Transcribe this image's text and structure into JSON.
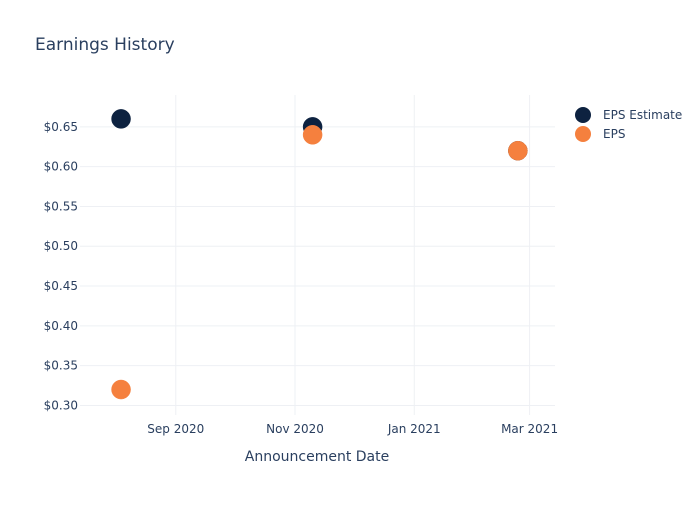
{
  "chart_data": {
    "type": "scatter",
    "title": "Earnings History",
    "xlabel": "Announcement Date",
    "ylabel": "",
    "x_tick_labels": [
      "Sep 2020",
      "Nov 2020",
      "Jan 2021",
      "Mar 2021"
    ],
    "x_ticks": [
      "2020-09-01",
      "2020-11-01",
      "2021-01-01",
      "2021-03-01"
    ],
    "xlim": [
      "2020-07-14",
      "2021-03-14"
    ],
    "y_tick_labels": [
      "$0.30",
      "$0.35",
      "$0.40",
      "$0.45",
      "$0.50",
      "$0.55",
      "$0.60",
      "$0.65"
    ],
    "y_ticks": [
      0.3,
      0.35,
      0.4,
      0.45,
      0.5,
      0.55,
      0.6,
      0.65
    ],
    "ylim": [
      0.288,
      0.69
    ],
    "grid": true,
    "legend_position": "top-right",
    "x": [
      "2020-08-04",
      "2020-11-10",
      "2021-02-23"
    ],
    "series": [
      {
        "name": "EPS Estimate",
        "color": "#0d2240",
        "values": [
          0.66,
          0.65,
          0.62
        ]
      },
      {
        "name": "EPS",
        "color": "#f5803e",
        "values": [
          0.32,
          0.64,
          0.62
        ]
      }
    ]
  }
}
